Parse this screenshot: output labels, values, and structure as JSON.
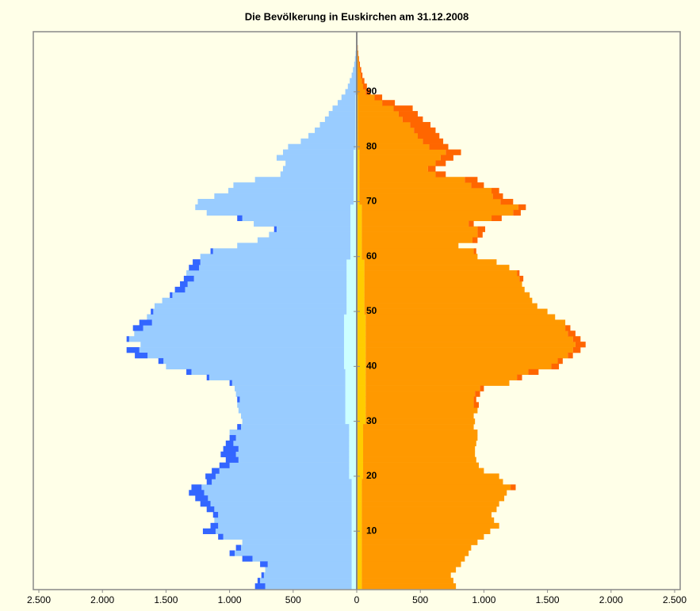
{
  "chart_data": {
    "type": "population_pyramid",
    "title": "Die Bevölkerung in Euskirchen am 31.12.2008",
    "ages": [
      0,
      1,
      2,
      3,
      4,
      5,
      6,
      7,
      8,
      9,
      10,
      11,
      12,
      13,
      14,
      15,
      16,
      17,
      18,
      19,
      20,
      21,
      22,
      23,
      24,
      25,
      26,
      27,
      28,
      29,
      30,
      31,
      32,
      33,
      34,
      35,
      36,
      37,
      38,
      39,
      40,
      41,
      42,
      43,
      44,
      45,
      46,
      47,
      48,
      49,
      50,
      51,
      52,
      53,
      54,
      55,
      56,
      57,
      58,
      59,
      60,
      61,
      62,
      63,
      64,
      65,
      66,
      67,
      68,
      69,
      70,
      71,
      72,
      73,
      74,
      75,
      76,
      77,
      78,
      79,
      80,
      81,
      82,
      83,
      84,
      85,
      86,
      87,
      88,
      89,
      90,
      91,
      92,
      93,
      94,
      95,
      96,
      97,
      98,
      99
    ],
    "series": [
      {
        "side": "left",
        "color": "#ccffff",
        "values": [
          40,
          40,
          40,
          40,
          40,
          40,
          40,
          40,
          40,
          40,
          40,
          40,
          40,
          40,
          40,
          40,
          40,
          40,
          40,
          40,
          60,
          60,
          60,
          60,
          60,
          60,
          60,
          60,
          60,
          60,
          90,
          90,
          90,
          90,
          90,
          90,
          90,
          90,
          90,
          90,
          100,
          100,
          100,
          100,
          100,
          100,
          100,
          100,
          100,
          100,
          80,
          80,
          80,
          80,
          80,
          80,
          80,
          80,
          80,
          80,
          50,
          50,
          50,
          50,
          50,
          50,
          50,
          50,
          50,
          50,
          25,
          25,
          25,
          25,
          25,
          25,
          25,
          25,
          25,
          25,
          10,
          10,
          10,
          10,
          10,
          10,
          10,
          10,
          10,
          10,
          0,
          0,
          0,
          0,
          0,
          0,
          0,
          0,
          0,
          0
        ]
      },
      {
        "side": "left",
        "color": "#99ccff",
        "values": [
          680,
          720,
          690,
          680,
          660,
          780,
          920,
          870,
          860,
          1010,
          1070,
          1050,
          1080,
          1050,
          1080,
          1110,
          1130,
          1160,
          1180,
          1100,
          1050,
          1020,
          940,
          870,
          890,
          870,
          910,
          890,
          940,
          850,
          810,
          820,
          840,
          850,
          830,
          860,
          870,
          890,
          1070,
          1210,
          1400,
          1420,
          1545,
          1610,
          1600,
          1690,
          1650,
          1580,
          1510,
          1550,
          1520,
          1510,
          1450,
          1370,
          1270,
          1250,
          1200,
          1260,
          1160,
          1150,
          1180,
          1080,
          890,
          730,
          640,
          580,
          760,
          850,
          1130,
          1220,
          1225,
          1095,
          985,
          945,
          775,
          575,
          555,
          535,
          605,
          555,
          530,
          430,
          370,
          320,
          280,
          240,
          210,
          180,
          140,
          110,
          90,
          70,
          55,
          40,
          30,
          20,
          14,
          9,
          6,
          3
        ]
      },
      {
        "side": "left",
        "color": "#3366ff",
        "values": [
          80,
          20,
          20,
          0,
          60,
          80,
          40,
          40,
          0,
          40,
          100,
          60,
          0,
          40,
          60,
          80,
          100,
          120,
          80,
          40,
          80,
          60,
          80,
          100,
          120,
          120,
          60,
          50,
          0,
          30,
          0,
          0,
          0,
          0,
          20,
          0,
          0,
          20,
          20,
          40,
          0,
          40,
          100,
          100,
          0,
          20,
          0,
          80,
          100,
          0,
          20,
          0,
          0,
          20,
          80,
          60,
          80,
          0,
          80,
          60,
          0,
          20,
          0,
          0,
          0,
          20,
          0,
          40,
          0,
          0,
          0,
          0,
          0,
          0,
          0,
          0,
          0,
          0,
          0,
          0,
          0,
          0,
          0,
          0,
          0,
          0,
          0,
          0,
          0,
          0,
          0,
          0,
          0,
          0,
          0,
          0,
          0,
          0,
          0,
          0
        ]
      },
      {
        "side": "right",
        "color": "#ffcc00",
        "values": [
          40,
          40,
          40,
          40,
          40,
          40,
          40,
          40,
          40,
          40,
          40,
          40,
          40,
          40,
          40,
          40,
          40,
          40,
          40,
          40,
          50,
          50,
          50,
          50,
          50,
          50,
          50,
          50,
          50,
          50,
          70,
          70,
          70,
          70,
          70,
          70,
          70,
          70,
          70,
          70,
          70,
          70,
          70,
          70,
          70,
          70,
          70,
          70,
          70,
          70,
          60,
          60,
          60,
          60,
          60,
          60,
          60,
          60,
          60,
          60,
          40,
          40,
          40,
          40,
          40,
          40,
          40,
          40,
          40,
          40,
          20,
          20,
          20,
          20,
          20,
          20,
          20,
          20,
          20,
          20,
          10,
          10,
          10,
          10,
          10,
          10,
          10,
          10,
          10,
          10,
          0,
          0,
          0,
          0,
          0,
          0,
          0,
          0,
          0,
          0
        ]
      },
      {
        "side": "right",
        "color": "#ff9900",
        "values": [
          740,
          720,
          700,
          740,
          780,
          810,
          840,
          860,
          910,
          960,
          1010,
          1080,
          1040,
          1020,
          1060,
          1080,
          1120,
          1140,
          1170,
          1110,
          1070,
          950,
          910,
          890,
          880,
          880,
          890,
          900,
          900,
          870,
          860,
          850,
          880,
          850,
          850,
          860,
          900,
          1130,
          1190,
          1280,
          1460,
          1510,
          1590,
          1630,
          1650,
          1630,
          1590,
          1570,
          1570,
          1490,
          1440,
          1360,
          1320,
          1300,
          1260,
          1240,
          1220,
          1200,
          1140,
          1040,
          910,
          880,
          760,
          870,
          910,
          910,
          840,
          1020,
          1190,
          1230,
          1110,
          1050,
          1040,
          880,
          830,
          600,
          540,
          600,
          640,
          680,
          560,
          510,
          470,
          440,
          410,
          350,
          320,
          280,
          190,
          130,
          70,
          50,
          40,
          30,
          25,
          17,
          13,
          9,
          6,
          3
        ]
      },
      {
        "side": "right",
        "color": "#ff6600",
        "values": [
          0,
          0,
          0,
          0,
          0,
          0,
          0,
          0,
          0,
          0,
          0,
          0,
          0,
          0,
          0,
          0,
          0,
          0,
          40,
          0,
          0,
          0,
          0,
          0,
          0,
          0,
          0,
          0,
          0,
          0,
          0,
          0,
          0,
          40,
          20,
          40,
          30,
          0,
          40,
          80,
          60,
          40,
          40,
          60,
          80,
          60,
          60,
          40,
          0,
          0,
          0,
          0,
          0,
          0,
          0,
          0,
          30,
          20,
          0,
          0,
          0,
          20,
          0,
          40,
          40,
          60,
          40,
          80,
          60,
          60,
          100,
          80,
          60,
          100,
          100,
          80,
          60,
          80,
          100,
          120,
          150,
          160,
          170,
          170,
          160,
          160,
          150,
          150,
          100,
          60,
          40,
          30,
          20,
          15,
          10,
          8,
          5,
          3,
          2,
          1
        ]
      }
    ],
    "xlim": [
      -2500,
      2500
    ],
    "xticks": [
      {
        "value": -2500,
        "label": "2.500"
      },
      {
        "value": -2000,
        "label": "2.000"
      },
      {
        "value": -1500,
        "label": "1.500"
      },
      {
        "value": -1000,
        "label": "1.000"
      },
      {
        "value": -500,
        "label": "500"
      },
      0,
      500,
      {
        "value": 1000,
        "label": "1.000"
      },
      {
        "value": 1500,
        "label": "1.500"
      },
      {
        "value": 2000,
        "label": "2.000"
      },
      {
        "value": 2500,
        "label": "2.500"
      }
    ],
    "ylim": [
      0,
      100
    ],
    "yticks": [
      10,
      20,
      30,
      40,
      50,
      60,
      70,
      80,
      90
    ]
  }
}
